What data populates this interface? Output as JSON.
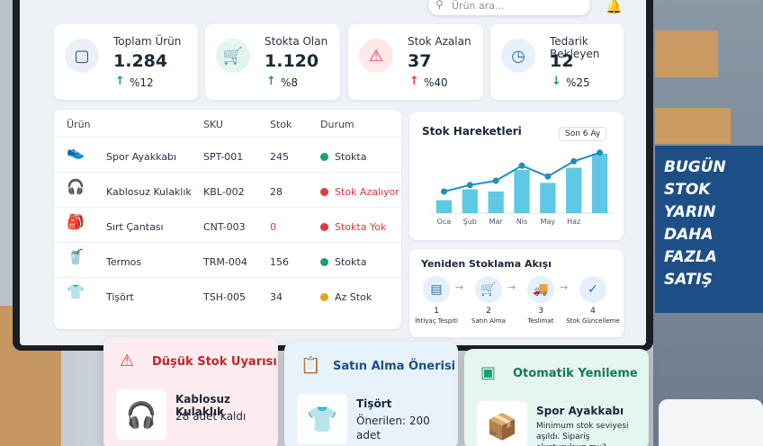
{
  "header": {
    "search_placeholder": "Ürün ara..."
  },
  "kpis": [
    {
      "label": "Toplam Ürün",
      "value": "1.284",
      "change": "%12"
    },
    {
      "label": "Stokta Olan",
      "value": "1.120",
      "change": "%8"
    },
    {
      "label": "Stok Azalan",
      "value": "37",
      "change": "%40"
    },
    {
      "label": "Tedarik Bekleyen",
      "value": "12",
      "change": "%25"
    }
  ],
  "table": {
    "headers": [
      "Ürün",
      "SKU",
      "Stok",
      "Durum"
    ],
    "rows": [
      {
        "name": "Spor Ayakkabı",
        "sku": "SPT-001",
        "stock": "245",
        "status": "Stokta",
        "color": "#1f9d6b"
      },
      {
        "name": "Kablosuz Kulaklık",
        "sku": "KBL-002",
        "stock": "28",
        "status": "Stok Azalıyor",
        "color": "#e0393e"
      },
      {
        "name": "Sırt Çantası",
        "sku": "CNT-003",
        "stock": "0",
        "status": "Stokta Yok",
        "color": "#e0393e"
      },
      {
        "name": "Termos",
        "sku": "TRM-004",
        "stock": "156",
        "status": "Stokta",
        "color": "#1f9d6b"
      },
      {
        "name": "Tişört",
        "sku": "TSH-005",
        "stock": "34",
        "status": "Az Stok",
        "color": "#e8a317"
      }
    ]
  },
  "chart_data": {
    "type": "bar",
    "title": "Stok Hareketleri",
    "period": "Son 6 Ay",
    "categories": [
      "Oca",
      "Şub",
      "Mar",
      "Nis",
      "May",
      "Haz",
      null
    ],
    "ylim": [
      0,
      60
    ],
    "series": [
      {
        "type": "bar",
        "color": "#5ec8e5",
        "values": [
          12,
          22,
          20,
          40,
          28,
          42,
          55
        ]
      },
      {
        "type": "line",
        "color": "#1b8fc0",
        "values": [
          20,
          26,
          30,
          44,
          34,
          48,
          56
        ]
      }
    ]
  },
  "flow": {
    "title": "Yeniden Stoklama Akışı",
    "steps": [
      {
        "num": "1",
        "label": "İhtiyaç Tespiti"
      },
      {
        "num": "2",
        "label": "Satın Alma"
      },
      {
        "num": "3",
        "label": "Teslimat"
      },
      {
        "num": "4",
        "label": "Stok Güncelleme"
      }
    ]
  },
  "cards": [
    {
      "title": "Düşük Stok Uyarısı",
      "item": "Kablosuz Kulaklık",
      "detail": "28 adet kaldı"
    },
    {
      "title": "Satın Alma Önerisi",
      "item": "Tişört",
      "detail": "Önerilen: 200 adet"
    },
    {
      "title": "Otomatik Yenileme",
      "item": "Spor Ayakkabı",
      "detail": "Minimum stok seviyesi aşıldı. Sipariş oluşturulsun mu?"
    }
  ],
  "poster": {
    "lines": [
      "BUGÜN",
      "STOK",
      "YARIN",
      "DAHA FAZLA",
      "SATIŞ"
    ]
  }
}
